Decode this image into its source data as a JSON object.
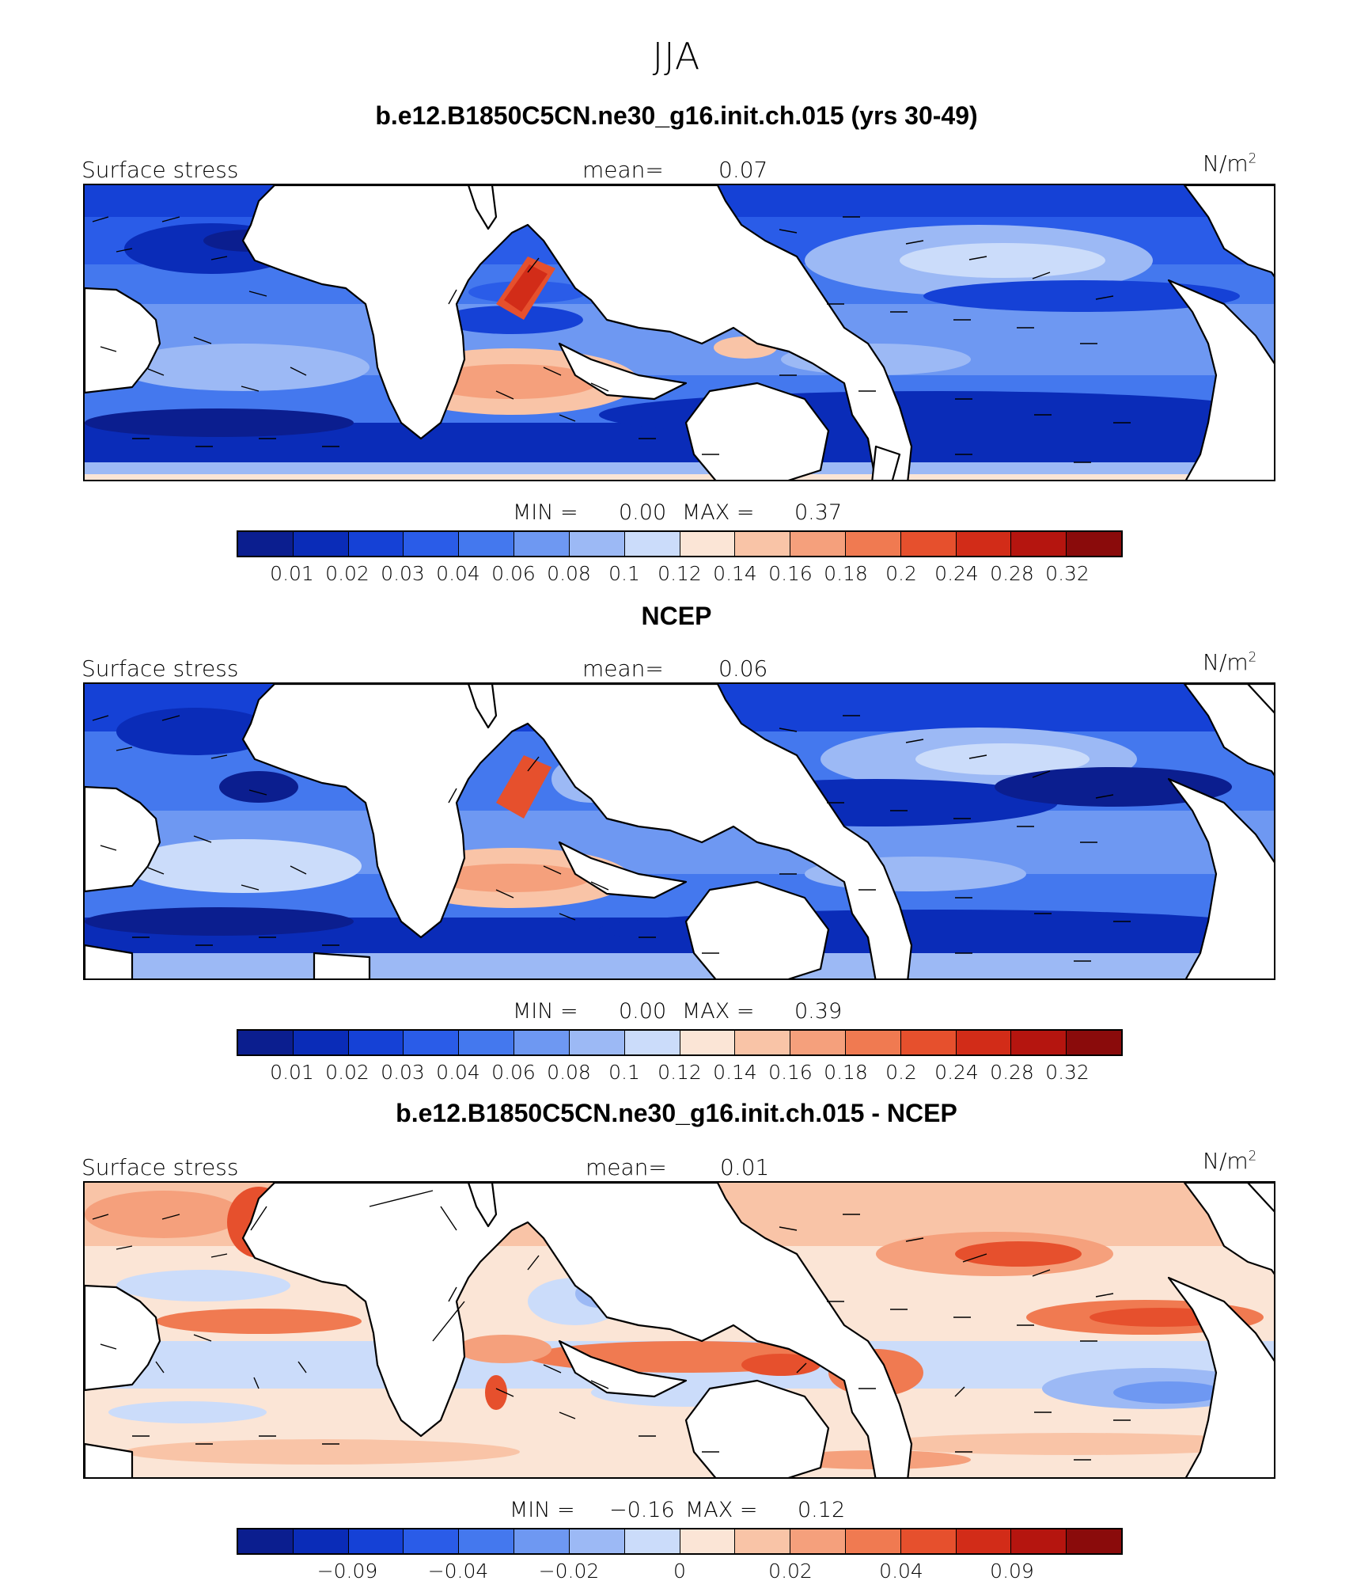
{
  "title": "JJA",
  "colors": {
    "sequential_scale": [
      "#0b1e8f",
      "#0a2cb8",
      "#1541d6",
      "#2a5ce8",
      "#4478ee",
      "#6e98f2",
      "#9cb9f5",
      "#cbdcfa",
      "#fbe5d6",
      "#f9c4a7",
      "#f5a07c",
      "#f07a51",
      "#e6502d",
      "#d22c18",
      "#b5150f",
      "#8a0b0b"
    ],
    "diverging_scale": [
      "#0b1e8f",
      "#0a2cb8",
      "#1541d6",
      "#2a5ce8",
      "#4478ee",
      "#6e98f2",
      "#9cb9f5",
      "#cbdcfa",
      "#fbe5d6",
      "#f9c4a7",
      "#f5a07c",
      "#f07a51",
      "#e6502d",
      "#d22c18",
      "#b5150f",
      "#8a0b0b"
    ],
    "land": "#ffffff",
    "coast": "#000000"
  },
  "panels": [
    {
      "title": "b.e12.B1850C5CN.ne30_g16.init.ch.015 (yrs 30-49)",
      "left_label": "Surface stress",
      "mean_label": "mean=",
      "mean_value": "0.07",
      "units": "N/m",
      "units_sup": "2",
      "min_label": "MIN =",
      "min_value": "0.00",
      "max_label": "MAX =",
      "max_value": "0.37",
      "ticks": [
        "0.01",
        "0.02",
        "0.03",
        "0.04",
        "0.06",
        "0.08",
        "0.1",
        "0.12",
        "0.14",
        "0.16",
        "0.18",
        "0.2",
        "0.24",
        "0.28",
        "0.32"
      ],
      "scale": "sequential"
    },
    {
      "title": "NCEP",
      "left_label": "Surface stress",
      "mean_label": "mean=",
      "mean_value": "0.06",
      "units": "N/m",
      "units_sup": "2",
      "min_label": "MIN =",
      "min_value": "0.00",
      "max_label": "MAX =",
      "max_value": "0.39",
      "ticks": [
        "0.01",
        "0.02",
        "0.03",
        "0.04",
        "0.06",
        "0.08",
        "0.1",
        "0.12",
        "0.14",
        "0.16",
        "0.18",
        "0.2",
        "0.24",
        "0.28",
        "0.32"
      ],
      "scale": "sequential"
    },
    {
      "title": "b.e12.B1850C5CN.ne30_g16.init.ch.015 - NCEP",
      "left_label": "Surface stress",
      "mean_label": "mean=",
      "mean_value": "0.01",
      "units": "N/m",
      "units_sup": "2",
      "min_label": "MIN =",
      "min_value": "−0.16",
      "max_label": "MAX =",
      "max_value": "0.12",
      "ticks": [
        "−0.09",
        "−0.04",
        "−0.02",
        "0",
        "0.02",
        "0.04",
        "0.09"
      ],
      "scale": "diverging"
    }
  ]
}
